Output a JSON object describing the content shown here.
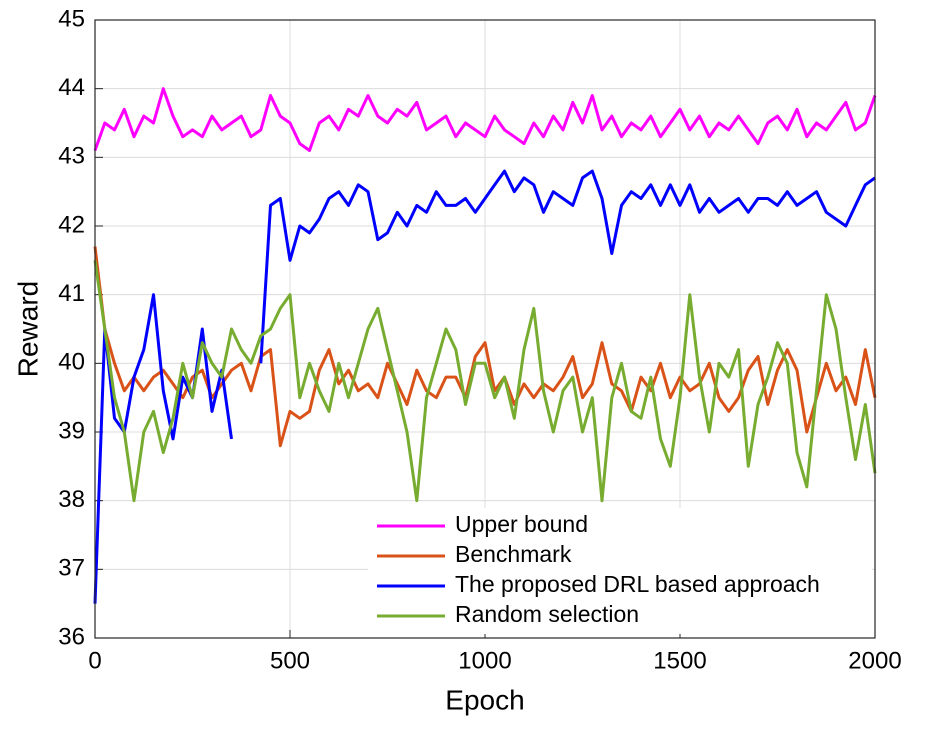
{
  "chart_data": {
    "type": "line",
    "x_label": "Epoch",
    "y_label": "Reward",
    "x": [
      0,
      25,
      50,
      75,
      100,
      125,
      150,
      175,
      200,
      225,
      250,
      275,
      300,
      325,
      350,
      375,
      400,
      425,
      450,
      475,
      500,
      525,
      550,
      575,
      600,
      625,
      650,
      675,
      700,
      725,
      750,
      775,
      800,
      825,
      850,
      875,
      900,
      925,
      950,
      975,
      1000,
      1025,
      1050,
      1075,
      1100,
      1125,
      1150,
      1175,
      1200,
      1225,
      1250,
      1275,
      1300,
      1325,
      1350,
      1375,
      1400,
      1425,
      1450,
      1475,
      1500,
      1525,
      1550,
      1575,
      1600,
      1625,
      1650,
      1675,
      1700,
      1725,
      1750,
      1775,
      1800,
      1825,
      1850,
      1875,
      1900,
      1925,
      1950,
      1975,
      2000
    ],
    "series": [
      {
        "name": "Upper bound",
        "color": "#ff00ff",
        "values": [
          43.1,
          43.5,
          43.4,
          43.7,
          43.3,
          43.6,
          43.5,
          44.0,
          43.6,
          43.3,
          43.4,
          43.3,
          43.6,
          43.4,
          43.5,
          43.6,
          43.3,
          43.4,
          43.9,
          43.6,
          43.5,
          43.2,
          43.1,
          43.5,
          43.6,
          43.4,
          43.7,
          43.6,
          43.9,
          43.6,
          43.5,
          43.7,
          43.6,
          43.8,
          43.4,
          43.5,
          43.6,
          43.3,
          43.5,
          43.4,
          43.3,
          43.6,
          43.4,
          43.3,
          43.2,
          43.5,
          43.3,
          43.6,
          43.4,
          43.8,
          43.5,
          43.9,
          43.4,
          43.6,
          43.3,
          43.5,
          43.4,
          43.6,
          43.3,
          43.5,
          43.7,
          43.4,
          43.6,
          43.3,
          43.5,
          43.4,
          43.6,
          43.4,
          43.2,
          43.5,
          43.6,
          43.4,
          43.7,
          43.3,
          43.5,
          43.4,
          43.6,
          43.8,
          43.4,
          43.5,
          43.9
        ]
      },
      {
        "name": "Benchmark",
        "color": "#d95319",
        "values": [
          41.7,
          40.5,
          40.0,
          39.6,
          39.8,
          39.6,
          39.8,
          39.9,
          39.7,
          39.5,
          39.8,
          39.9,
          39.5,
          39.7,
          39.9,
          40.0,
          39.6,
          40.1,
          40.2,
          38.8,
          39.3,
          39.2,
          39.3,
          39.9,
          40.2,
          39.7,
          39.9,
          39.6,
          39.7,
          39.5,
          40.0,
          39.7,
          39.4,
          39.9,
          39.6,
          39.5,
          39.8,
          39.8,
          39.5,
          40.1,
          40.3,
          39.6,
          39.8,
          39.4,
          39.7,
          39.5,
          39.7,
          39.6,
          39.8,
          40.1,
          39.5,
          39.7,
          40.3,
          39.7,
          39.6,
          39.3,
          39.8,
          39.6,
          40.0,
          39.5,
          39.8,
          39.6,
          39.7,
          40.0,
          39.5,
          39.3,
          39.5,
          39.9,
          40.1,
          39.4,
          39.9,
          40.2,
          39.9,
          39.0,
          39.5,
          40.0,
          39.6,
          39.8,
          39.4,
          40.2,
          39.5
        ]
      },
      {
        "name": "The proposed DRL based approach",
        "color": "#0000ff",
        "values": [
          36.5,
          40.5,
          39.2,
          39.0,
          39.8,
          40.2,
          41.0,
          39.6,
          38.9,
          39.8,
          39.5,
          40.5,
          39.3,
          39.9,
          38.9,
          null,
          null,
          40.0,
          42.3,
          42.4,
          41.5,
          42.0,
          41.9,
          42.1,
          42.4,
          42.5,
          42.3,
          42.6,
          42.5,
          41.8,
          41.9,
          42.2,
          42.0,
          42.3,
          42.2,
          42.5,
          42.3,
          42.3,
          42.4,
          42.2,
          42.4,
          42.6,
          42.8,
          42.5,
          42.7,
          42.6,
          42.2,
          42.5,
          42.4,
          42.3,
          42.7,
          42.8,
          42.4,
          41.6,
          42.3,
          42.5,
          42.4,
          42.6,
          42.3,
          42.6,
          42.3,
          42.6,
          42.2,
          42.4,
          42.2,
          42.3,
          42.4,
          42.2,
          42.4,
          42.4,
          42.3,
          42.5,
          42.3,
          42.4,
          42.5,
          42.2,
          42.1,
          42.0,
          42.3,
          42.6,
          42.7
        ]
      },
      {
        "name": "Random selection",
        "color": "#77ac30",
        "values": [
          41.5,
          40.5,
          39.5,
          39.0,
          38.0,
          39.0,
          39.3,
          38.7,
          39.2,
          40.0,
          39.5,
          40.3,
          40.0,
          39.8,
          40.5,
          40.2,
          40.0,
          40.4,
          40.5,
          40.8,
          41.0,
          39.5,
          40.0,
          39.6,
          39.3,
          40.0,
          39.5,
          40.0,
          40.5,
          40.8,
          40.2,
          39.6,
          39.0,
          38.0,
          39.5,
          40.0,
          40.5,
          40.2,
          39.4,
          40.0,
          40.0,
          39.5,
          39.8,
          39.2,
          40.2,
          40.8,
          39.6,
          39.0,
          39.6,
          39.8,
          39.0,
          39.5,
          38.0,
          39.5,
          40.0,
          39.3,
          39.2,
          39.8,
          38.9,
          38.5,
          39.5,
          41.0,
          39.8,
          39.0,
          40.0,
          39.8,
          40.2,
          38.5,
          39.4,
          39.8,
          40.3,
          40.0,
          38.7,
          38.2,
          39.6,
          41.0,
          40.5,
          39.5,
          38.6,
          39.4,
          38.4
        ]
      }
    ],
    "xlim": [
      0,
      2000
    ],
    "xticks": [
      0,
      500,
      1000,
      1500,
      2000
    ],
    "ylim": [
      36,
      45
    ],
    "yticks": [
      36,
      37,
      38,
      39,
      40,
      41,
      42,
      43,
      44,
      45
    ],
    "grid": true,
    "legend": "bottom"
  }
}
